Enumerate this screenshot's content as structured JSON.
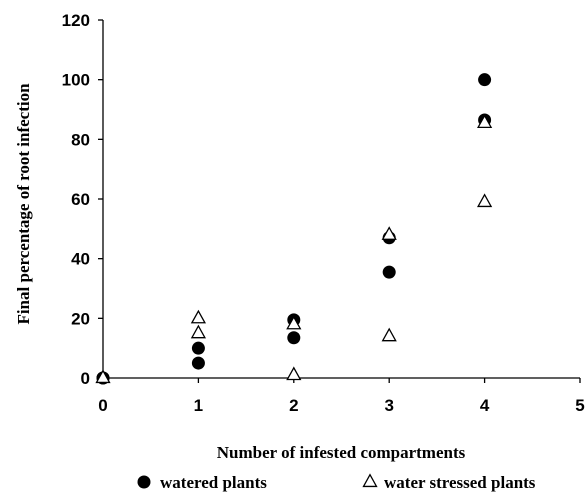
{
  "chart_data": {
    "type": "scatter",
    "xlabel": "Number of infested compartments",
    "ylabel": "Final percentage of root infection",
    "xlim": [
      0,
      5
    ],
    "ylim": [
      0,
      120
    ],
    "x_ticks": [
      "0",
      "1",
      "2",
      "3",
      "4",
      "5"
    ],
    "y_ticks": [
      "0",
      "20",
      "40",
      "60",
      "80",
      "100",
      "120"
    ],
    "grid": false,
    "legend_position": "bottom",
    "series": [
      {
        "name": "watered plants",
        "marker": "filled-circle",
        "color": "#000000",
        "points": [
          {
            "x": 0,
            "y": 0
          },
          {
            "x": 0,
            "y": 0
          },
          {
            "x": 1,
            "y": 10
          },
          {
            "x": 1,
            "y": 5
          },
          {
            "x": 2,
            "y": 19.5
          },
          {
            "x": 2,
            "y": 13.5
          },
          {
            "x": 3,
            "y": 47
          },
          {
            "x": 3,
            "y": 35.5
          },
          {
            "x": 4,
            "y": 100
          },
          {
            "x": 4,
            "y": 86.5
          }
        ]
      },
      {
        "name": "water stressed plants",
        "marker": "open-triangle",
        "color": "#000000",
        "points": [
          {
            "x": 0,
            "y": 0
          },
          {
            "x": 1,
            "y": 20
          },
          {
            "x": 1,
            "y": 15
          },
          {
            "x": 2,
            "y": 18
          },
          {
            "x": 2,
            "y": 1
          },
          {
            "x": 3,
            "y": 48
          },
          {
            "x": 3,
            "y": 14
          },
          {
            "x": 4,
            "y": 85.5
          },
          {
            "x": 4,
            "y": 59
          }
        ]
      }
    ]
  }
}
